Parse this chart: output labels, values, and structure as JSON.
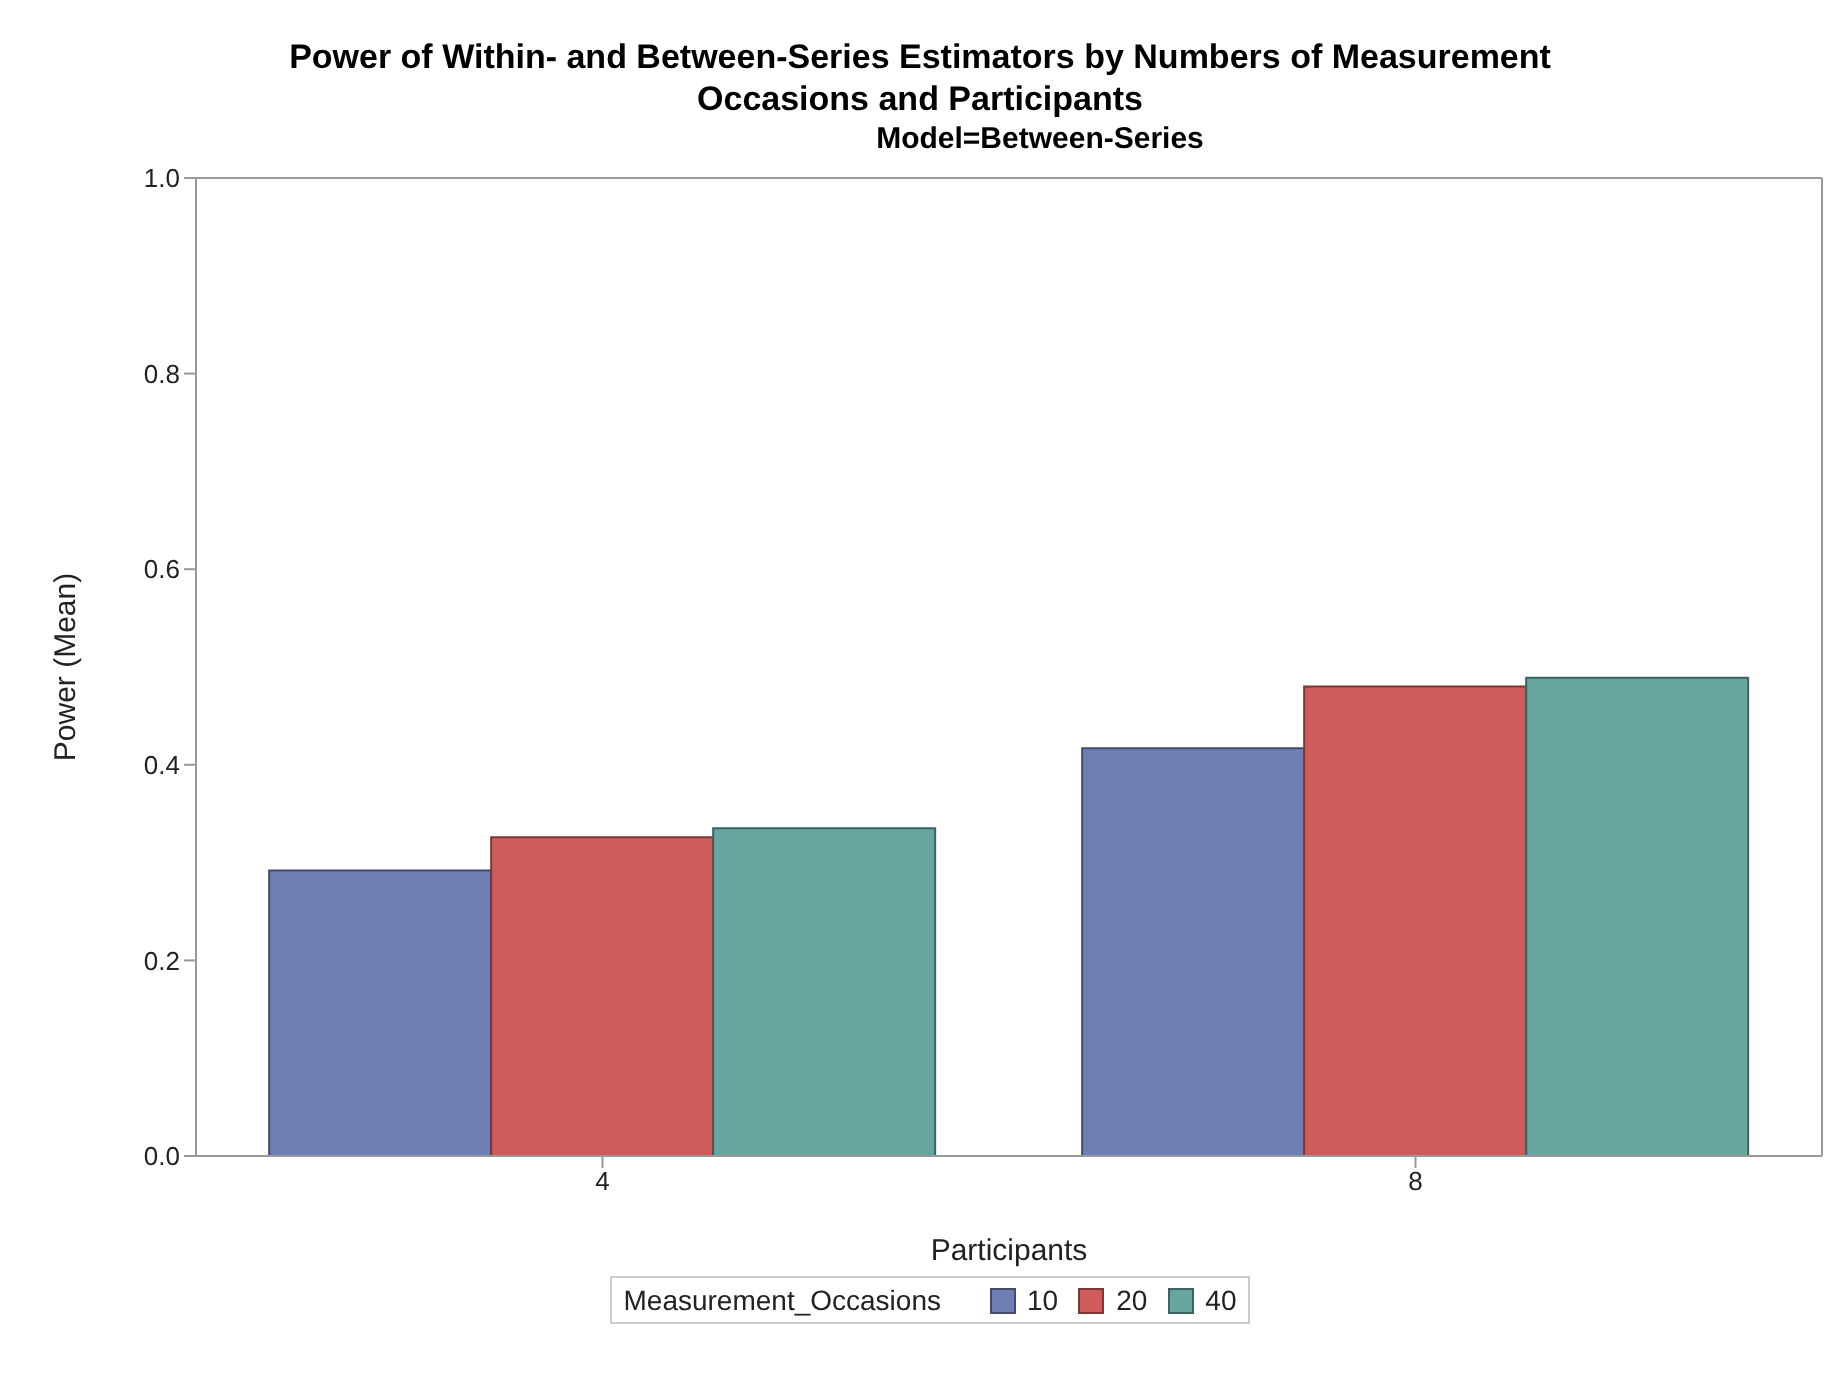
{
  "chart_data": {
    "type": "bar",
    "title": "Power of Within- and Between-Series Estimators by Numbers of Measurement Occasions and Participants",
    "subtitle": "Model=Between-Series",
    "xlabel": "Participants",
    "ylabel": "Power (Mean)",
    "legend_title": "Measurement_Occasions",
    "categories": [
      "4",
      "8"
    ],
    "series": [
      {
        "name": "10",
        "color": "#6f7eb3",
        "values": [
          0.292,
          0.417
        ]
      },
      {
        "name": "20",
        "color": "#d05b5b",
        "values": [
          0.326,
          0.48
        ]
      },
      {
        "name": "40",
        "color": "#66a5a0",
        "values": [
          0.335,
          0.489
        ]
      }
    ],
    "ylim": [
      0,
      1
    ],
    "yticks": [
      {
        "value": 0,
        "label": "0.0"
      },
      {
        "value": 0.2,
        "label": "0.2"
      },
      {
        "value": 0.4,
        "label": "0.4"
      },
      {
        "value": 0.6,
        "label": "0.6"
      },
      {
        "value": 0.8,
        "label": "0.8"
      },
      {
        "value": 1,
        "label": "1.0"
      }
    ],
    "grid": false,
    "legend": "bottom"
  }
}
